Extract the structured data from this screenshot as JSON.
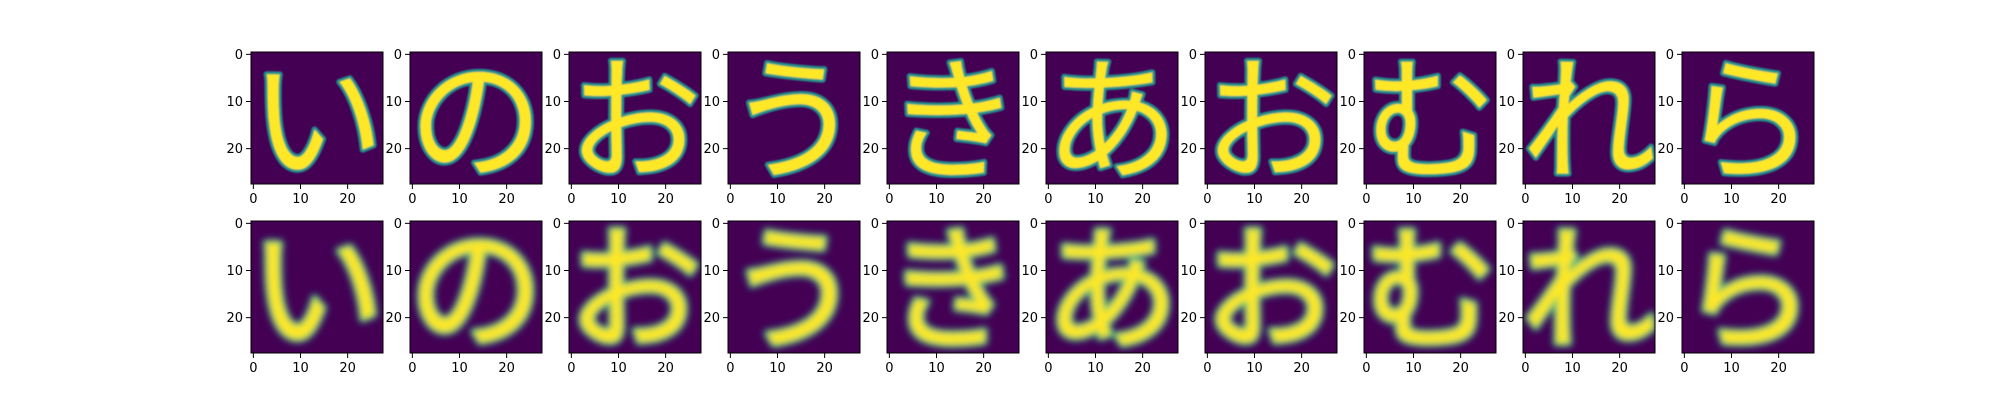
{
  "chart_data": {
    "type": "heatmap",
    "layout": {
      "rows": 2,
      "columns": 10
    },
    "row_roles": [
      "original",
      "reconstruction"
    ],
    "colormap": "viridis",
    "colormap_stops": [
      "#440154",
      "#3b528b",
      "#21918c",
      "#5ec962",
      "#fde725"
    ],
    "image_size": [
      28,
      28
    ],
    "xlim": [
      -0.5,
      27.5
    ],
    "ylim": [
      27.5,
      -0.5
    ],
    "x_ticks": [
      0,
      10,
      20
    ],
    "x_tick_labels": [
      "0",
      "10",
      "20"
    ],
    "y_ticks": [
      0,
      10,
      20
    ],
    "y_tick_labels": [
      "0",
      "10",
      "20"
    ],
    "title": "",
    "xlabel": "",
    "ylabel": "",
    "panels": [
      {
        "row": 0,
        "col": 0,
        "label": "い",
        "sample": 0
      },
      {
        "row": 0,
        "col": 1,
        "label": "の",
        "sample": 1
      },
      {
        "row": 0,
        "col": 2,
        "label": "お",
        "sample": 2
      },
      {
        "row": 0,
        "col": 3,
        "label": "う",
        "sample": 3
      },
      {
        "row": 0,
        "col": 4,
        "label": "き",
        "sample": 4
      },
      {
        "row": 0,
        "col": 5,
        "label": "あ",
        "sample": 5
      },
      {
        "row": 0,
        "col": 6,
        "label": "お",
        "sample": 6
      },
      {
        "row": 0,
        "col": 7,
        "label": "む",
        "sample": 7
      },
      {
        "row": 0,
        "col": 8,
        "label": "れ",
        "sample": 8
      },
      {
        "row": 0,
        "col": 9,
        "label": "ら",
        "sample": 9
      },
      {
        "row": 1,
        "col": 0,
        "label": "い",
        "sample": 0
      },
      {
        "row": 1,
        "col": 1,
        "label": "の",
        "sample": 1
      },
      {
        "row": 1,
        "col": 2,
        "label": "お",
        "sample": 2
      },
      {
        "row": 1,
        "col": 3,
        "label": "う",
        "sample": 3
      },
      {
        "row": 1,
        "col": 4,
        "label": "き",
        "sample": 4
      },
      {
        "row": 1,
        "col": 5,
        "label": "あ",
        "sample": 5
      },
      {
        "row": 1,
        "col": 6,
        "label": "お",
        "sample": 6
      },
      {
        "row": 1,
        "col": 7,
        "label": "む",
        "sample": 7
      },
      {
        "row": 1,
        "col": 8,
        "label": "れ",
        "sample": 8
      },
      {
        "row": 1,
        "col": 9,
        "label": "ら",
        "sample": 9
      }
    ]
  }
}
